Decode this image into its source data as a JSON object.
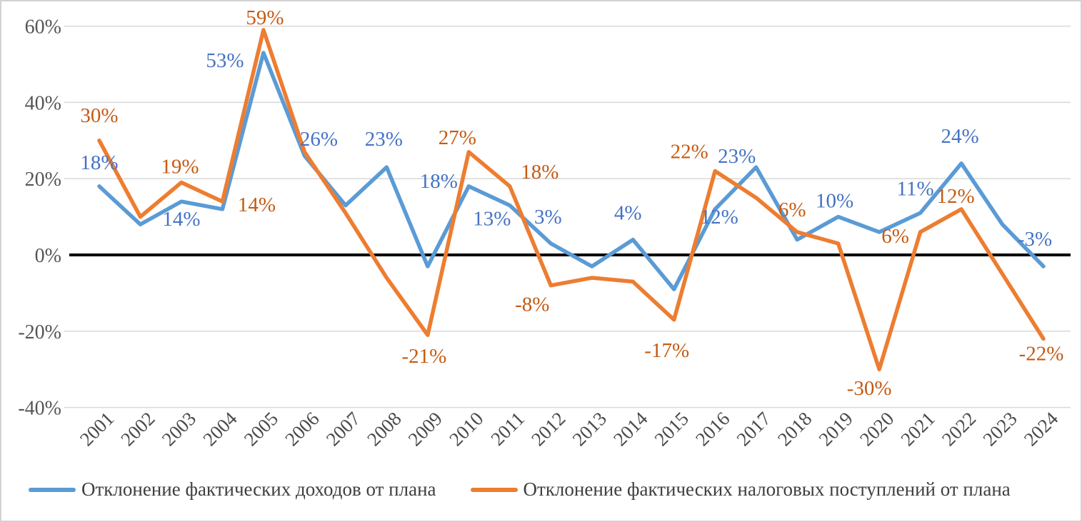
{
  "chart_data": {
    "type": "line",
    "title": "",
    "xlabel": "",
    "ylabel": "",
    "x": [
      "2001",
      "2002",
      "2003",
      "2004",
      "2005",
      "2006",
      "2007",
      "2008",
      "2009",
      "2010",
      "2011",
      "2012",
      "2013",
      "2014",
      "2015",
      "2016",
      "2017",
      "2018",
      "2019",
      "2020",
      "2021",
      "2022",
      "2023",
      "2024"
    ],
    "ylim": [
      -40,
      60
    ],
    "grid": true,
    "legend_position": "bottom",
    "zero_line_color": "#000000",
    "gridline_color": "#d9d9d9",
    "y_ticks": [
      {
        "value": 60,
        "label": "60%"
      },
      {
        "value": 40,
        "label": "40%"
      },
      {
        "value": 20,
        "label": "20%"
      },
      {
        "value": 0,
        "label": "0%"
      },
      {
        "value": -20,
        "label": "-20%"
      },
      {
        "value": -40,
        "label": "-40%"
      }
    ],
    "series": [
      {
        "name": "Отклонение фактических доходов от плана",
        "color": "#5B9BD5",
        "label_color": "#4472C4",
        "values": [
          18,
          8,
          14,
          12,
          53,
          26,
          13,
          23,
          -3,
          18,
          13,
          3,
          -3,
          4,
          -9,
          12,
          23,
          4,
          10,
          6,
          11,
          24,
          8,
          -3
        ],
        "point_labels": [
          {
            "text": "18%",
            "dx": 0,
            "dy": -24
          },
          null,
          {
            "text": "14%",
            "dx": 0,
            "dy": 34
          },
          null,
          {
            "text": "53%",
            "dx": -54,
            "dy": 20
          },
          {
            "text": "26%",
            "dx": 20,
            "dy": -14
          },
          null,
          {
            "text": "23%",
            "dx": -4,
            "dy": -30
          },
          null,
          {
            "text": "18%",
            "dx": -42,
            "dy": 2
          },
          {
            "text": "13%",
            "dx": -25,
            "dy": 28
          },
          {
            "text": "3%",
            "dx": -4,
            "dy": -28
          },
          null,
          {
            "text": "4%",
            "dx": -7,
            "dy": -28
          },
          null,
          {
            "text": "12%",
            "dx": 6,
            "dy": 20
          },
          {
            "text": "23%",
            "dx": -27,
            "dy": -6
          },
          null,
          {
            "text": "10%",
            "dx": -5,
            "dy": -13
          },
          null,
          {
            "text": "11%",
            "dx": -7,
            "dy": -25
          },
          {
            "text": "24%",
            "dx": -2,
            "dy": -29
          },
          null,
          {
            "text": "-3%",
            "dx": -12,
            "dy": -29
          }
        ]
      },
      {
        "name": "Отклонение фактических налоговых поступлений от плана",
        "color": "#ED7D31",
        "label_color": "#C55A11",
        "values": [
          30,
          10,
          19,
          14,
          59,
          27,
          11,
          -6,
          -21,
          27,
          18,
          -8,
          -6,
          -7,
          -17,
          22,
          15,
          6,
          3,
          -30,
          6,
          12,
          -5,
          -22
        ],
        "point_labels": [
          {
            "text": "30%",
            "dx": 0,
            "dy": -26
          },
          null,
          {
            "text": "19%",
            "dx": -2,
            "dy": -13
          },
          {
            "text": "14%",
            "dx": 48,
            "dy": 14
          },
          {
            "text": "59%",
            "dx": 2,
            "dy": -8
          },
          null,
          null,
          null,
          {
            "text": "-21%",
            "dx": -5,
            "dy": 39
          },
          {
            "text": "27%",
            "dx": -16,
            "dy": -11
          },
          {
            "text": "18%",
            "dx": 42,
            "dy": -11
          },
          {
            "text": "-8%",
            "dx": -26,
            "dy": 36
          },
          null,
          null,
          {
            "text": "-17%",
            "dx": -10,
            "dy": 52
          },
          {
            "text": "22%",
            "dx": -36,
            "dy": -18
          },
          null,
          {
            "text": "6%",
            "dx": -7,
            "dy": -22
          },
          null,
          {
            "text": "-30%",
            "dx": -14,
            "dy": 36
          },
          {
            "text": "6%",
            "dx": -35,
            "dy": 15
          },
          {
            "text": "12%",
            "dx": -8,
            "dy": -9
          },
          null,
          {
            "text": "-22%",
            "dx": -3,
            "dy": 30
          }
        ]
      }
    ]
  }
}
